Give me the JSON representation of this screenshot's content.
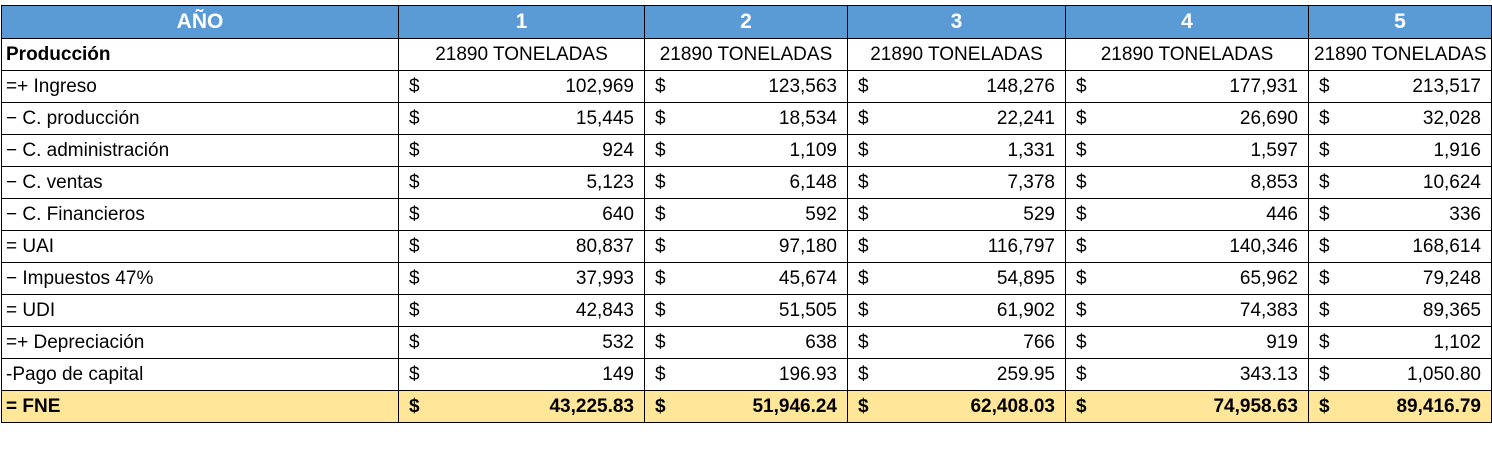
{
  "header": {
    "label": "AÑO",
    "years": [
      "1",
      "2",
      "3",
      "4",
      "5"
    ]
  },
  "production": {
    "label": "Producción",
    "values": [
      "21890 TONELADAS",
      "21890 TONELADAS",
      "21890 TONELADAS",
      "21890 TONELADAS",
      "21890 TONELADAS"
    ]
  },
  "currency_symbol": "$",
  "rows": [
    {
      "label": "=+ Ingreso",
      "values": [
        "102,969",
        "123,563",
        "148,276",
        "177,931",
        "213,517"
      ]
    },
    {
      "label": "− C. producción",
      "values": [
        "15,445",
        "18,534",
        "22,241",
        "26,690",
        "32,028"
      ]
    },
    {
      "label": "− C. administración",
      "values": [
        "924",
        "1,109",
        "1,331",
        "1,597",
        "1,916"
      ]
    },
    {
      "label": "− C. ventas",
      "values": [
        "5,123",
        "6,148",
        "7,378",
        "8,853",
        "10,624"
      ]
    },
    {
      "label": "− C. Financieros",
      "values": [
        "640",
        "592",
        "529",
        "446",
        "336"
      ]
    },
    {
      "label": "= UAI",
      "values": [
        "80,837",
        "97,180",
        "116,797",
        "140,346",
        "168,614"
      ]
    },
    {
      "label": "− Impuestos 47%",
      "values": [
        "37,993",
        "45,674",
        "54,895",
        "65,962",
        "79,248"
      ]
    },
    {
      "label": "= UDI",
      "values": [
        "42,843",
        "51,505",
        "61,902",
        "74,383",
        "89,365"
      ]
    },
    {
      "label": "=+ Depreciación",
      "values": [
        "532",
        "638",
        "766",
        "919",
        "1,102"
      ]
    },
    {
      "label": "-Pago de capital",
      "values": [
        "149",
        "196.93",
        "259.95",
        "343.13",
        "1,050.80"
      ]
    }
  ],
  "total": {
    "label": "= FNE",
    "values": [
      "43,225.83",
      "51,946.24",
      "62,408.03",
      "74,958.63",
      "89,416.79"
    ]
  },
  "colors": {
    "header_bg": "#5b9bd5",
    "header_text": "#ffffff",
    "total_bg": "#ffe699"
  }
}
